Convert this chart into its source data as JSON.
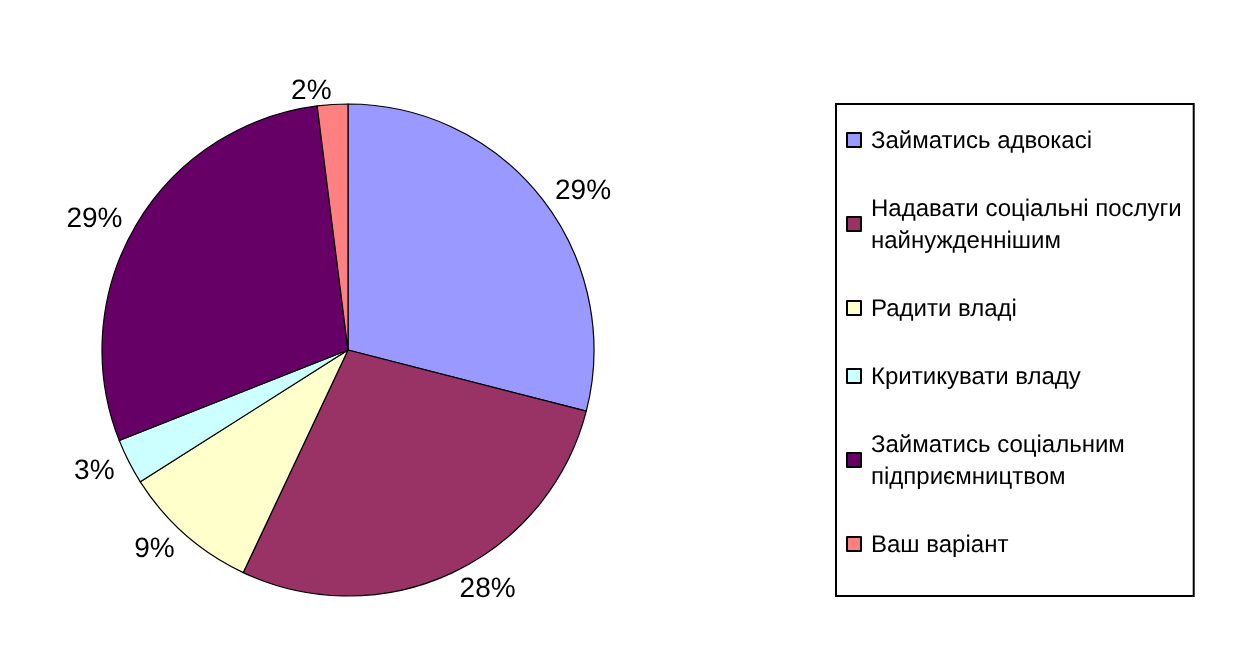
{
  "chart_data": {
    "type": "pie",
    "categories": [
      "Займатись адвокасі",
      "Надавати соціальні послуги найнужденнішим",
      "Радити владі",
      "Критикувати владу",
      "Займатись соціальним підприємництвом",
      "Ваш варіант"
    ],
    "values": [
      29,
      28,
      9,
      3,
      29,
      2
    ],
    "value_labels": [
      "29%",
      "28%",
      "9%",
      "3%",
      "29%",
      "2%"
    ],
    "colors": [
      "#9999ff",
      "#993366",
      "#ffffcc",
      "#ccffff",
      "#660066",
      "#ff8080"
    ],
    "legend": "right"
  }
}
